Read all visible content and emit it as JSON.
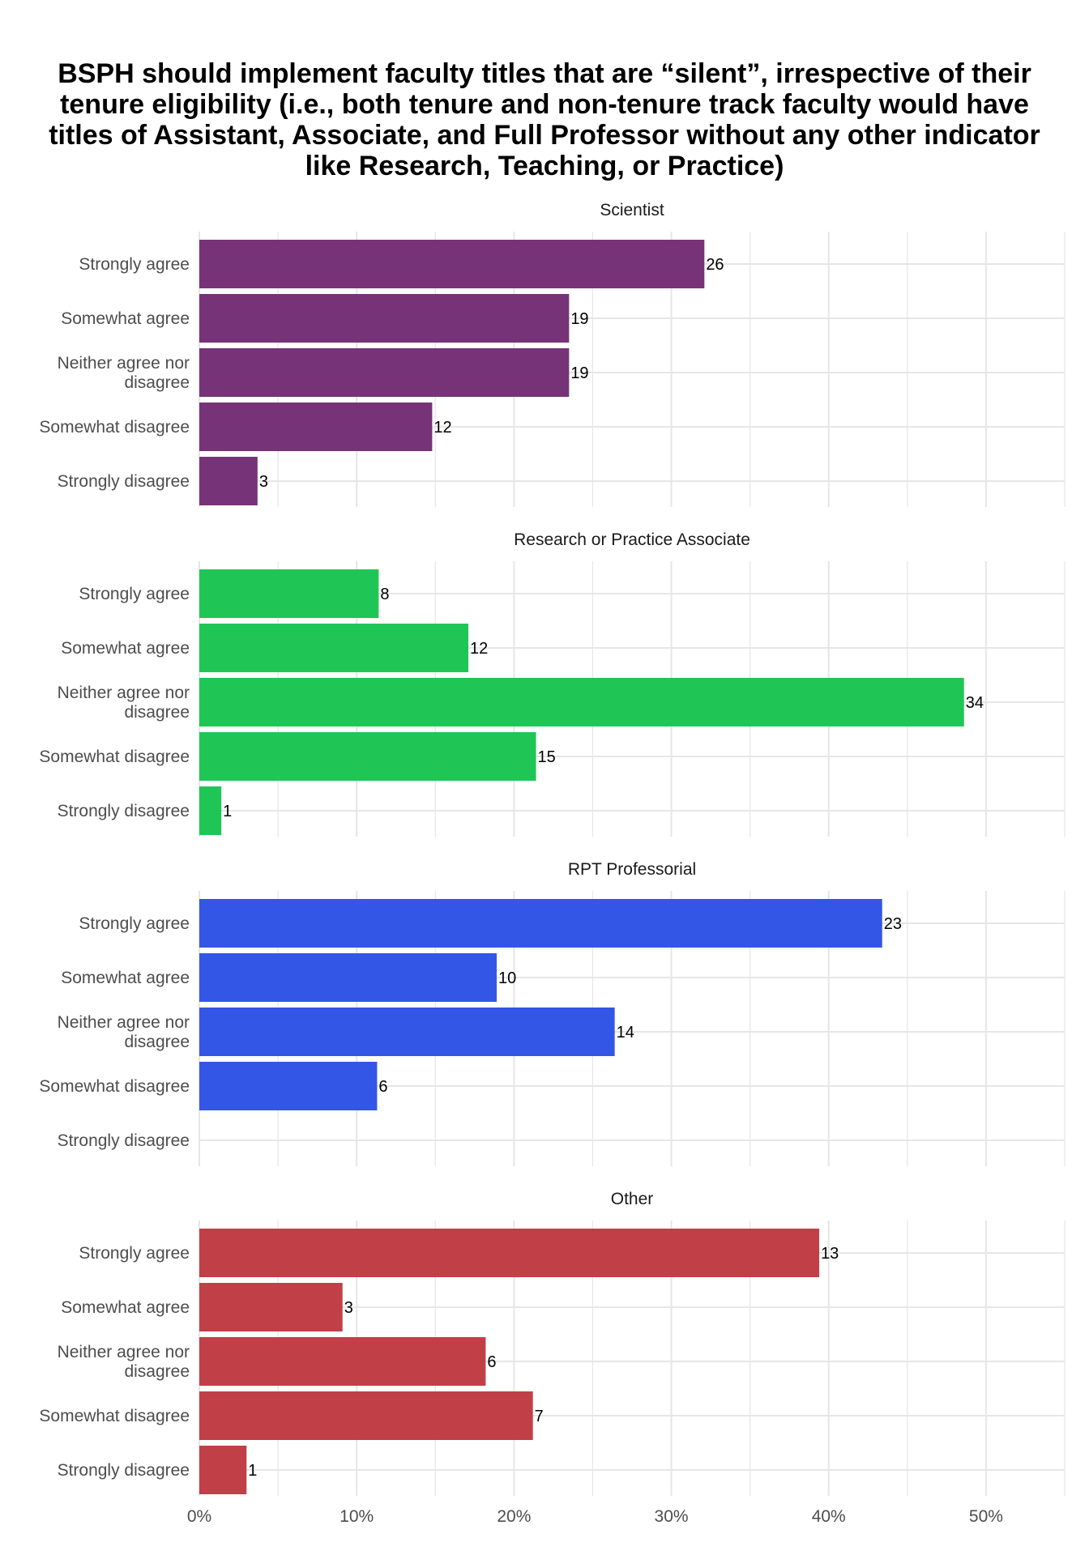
{
  "chart_data": {
    "type": "bar",
    "orientation": "horizontal",
    "title": "BSPH should implement faculty titles that are “silent”, irrespective of their tenure eligibility (i.e., both tenure and non-tenure track faculty would have titles of Assistant, Associate, and Full Professor without any other indicator like Research, Teaching, or Practice)",
    "categories": [
      "Strongly agree",
      "Somewhat agree",
      "Neither agree nor disagree",
      "Somewhat disagree",
      "Strongly disagree"
    ],
    "xlabel": "",
    "ylabel": "",
    "xlim": [
      0,
      0.55
    ],
    "x_ticks": [
      0,
      0.1,
      0.2,
      0.3,
      0.4,
      0.5
    ],
    "x_tick_labels": [
      "0%",
      "10%",
      "20%",
      "30%",
      "40%",
      "50%"
    ],
    "value_type": "share of respondents within panel",
    "data_labels": "counts",
    "grid": true,
    "legend": "none",
    "panels": [
      {
        "name": "Scientist",
        "color": "#763377",
        "counts": [
          26,
          19,
          19,
          12,
          3
        ],
        "percent": [
          32.1,
          23.5,
          23.5,
          14.8,
          3.7
        ]
      },
      {
        "name": "Research or Practice Associate",
        "color": "#1fc655",
        "counts": [
          8,
          12,
          34,
          15,
          1
        ],
        "percent": [
          11.4,
          17.1,
          48.6,
          21.4,
          1.4
        ]
      },
      {
        "name": "RPT Professorial",
        "color": "#3356e6",
        "counts": [
          23,
          10,
          14,
          6,
          null
        ],
        "percent": [
          43.4,
          18.9,
          26.4,
          11.3,
          0
        ]
      },
      {
        "name": "Other",
        "color": "#c13f46",
        "counts": [
          13,
          3,
          6,
          7,
          1
        ],
        "percent": [
          39.4,
          9.1,
          18.2,
          21.2,
          3.0
        ]
      }
    ]
  },
  "colors": {
    "grid": "#e6e6e6",
    "label_text": "#4d4d4d",
    "value_text": "#000000"
  }
}
